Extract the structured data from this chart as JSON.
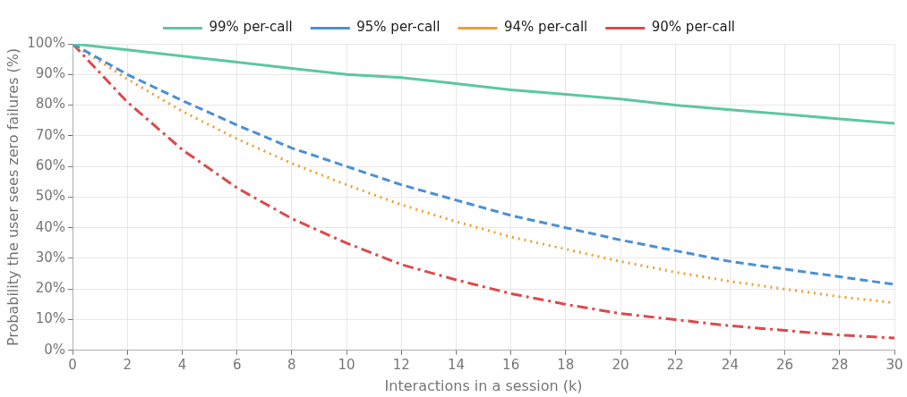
{
  "chart_data": {
    "type": "line",
    "xlabel": "Interactions in a session (k)",
    "ylabel": "Probability the user sees zero failures (%)",
    "x": [
      0,
      2,
      4,
      6,
      8,
      10,
      12,
      14,
      16,
      18,
      20,
      22,
      24,
      26,
      28,
      30
    ],
    "series": [
      {
        "name": "99% per-call",
        "color": "#5cc8a0",
        "line_style": "solid",
        "values": [
          100,
          98,
          96,
          94,
          92,
          90,
          89,
          87,
          85,
          83.5,
          82,
          80,
          78.5,
          77,
          75.5,
          74
        ]
      },
      {
        "name": "95% per-call",
        "color": "#4a90d9",
        "line_style": "dashed",
        "values": [
          100,
          90,
          81.5,
          73.5,
          66,
          60,
          54,
          49,
          44,
          40,
          36,
          32.5,
          29,
          26.5,
          24,
          21.5
        ]
      },
      {
        "name": "94% per-call",
        "color": "#f0a030",
        "line_style": "dotted",
        "values": [
          100,
          88.5,
          78,
          69,
          61,
          54,
          47.5,
          42,
          37,
          33,
          29,
          25.5,
          22.5,
          20,
          17.5,
          15.5
        ]
      },
      {
        "name": "90% per-call",
        "color": "#e0484a",
        "line_style": "dashdot",
        "values": [
          100,
          81,
          65.5,
          53,
          43,
          35,
          28,
          23,
          18.5,
          15,
          12,
          10,
          8,
          6.5,
          5,
          4
        ]
      }
    ],
    "xlim": [
      0,
      30
    ],
    "xticks": [
      0,
      2,
      4,
      6,
      8,
      10,
      12,
      14,
      16,
      18,
      20,
      22,
      24,
      26,
      28,
      30
    ],
    "ylim": [
      0,
      100
    ],
    "yticks": [
      {
        "value": 0,
        "label": "0%"
      },
      {
        "value": 10,
        "label": "10%"
      },
      {
        "value": 20,
        "label": "20%"
      },
      {
        "value": 30,
        "label": "30%"
      },
      {
        "value": 40,
        "label": "40%"
      },
      {
        "value": 50,
        "label": "50%"
      },
      {
        "value": 60,
        "label": "60%"
      },
      {
        "value": 70,
        "label": "70%"
      },
      {
        "value": 80,
        "label": "80%"
      },
      {
        "value": 90,
        "label": "90%"
      },
      {
        "value": 100,
        "label": "100%"
      }
    ],
    "grid": true,
    "legend": "top",
    "marker": "none"
  }
}
